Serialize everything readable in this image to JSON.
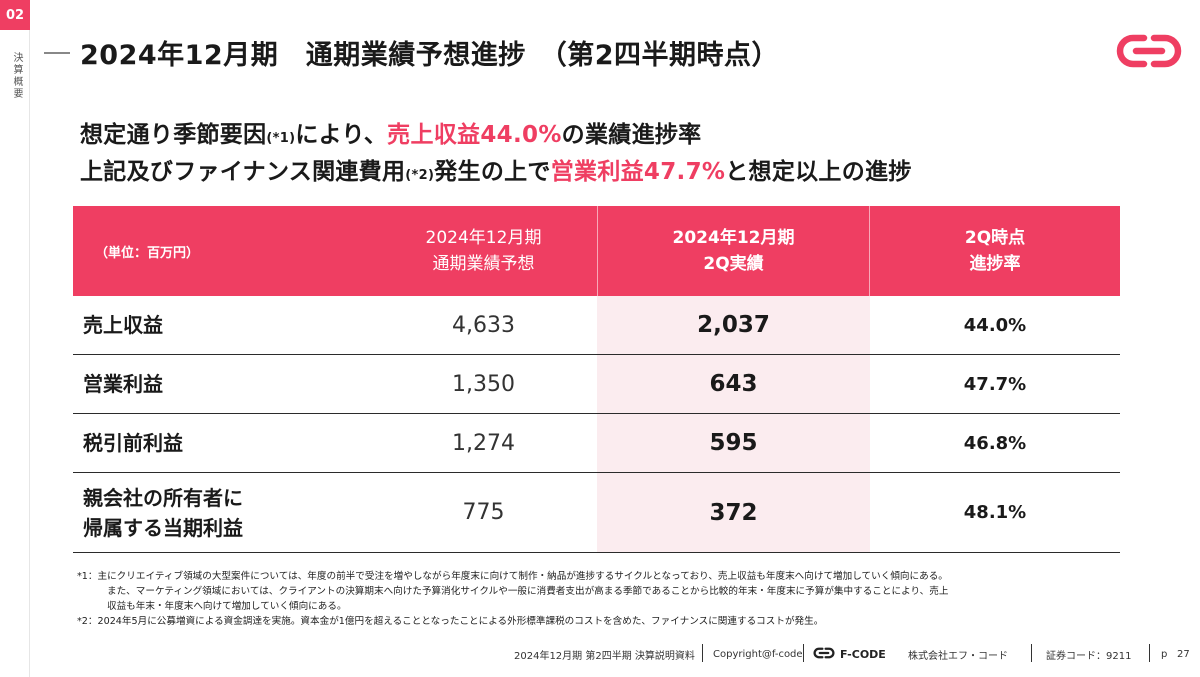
{
  "section": {
    "number": "02",
    "label": "決算概要"
  },
  "page_title": "2024年12月期　通期業績予想進捗　（第2四半期時点）",
  "brand_color": "#ef3e62",
  "headline": {
    "line1_a": "想定通り季節要因",
    "line1_ref": "(*1)",
    "line1_b": "により、",
    "line1_accent": "売上収益44.0%",
    "line1_c": "の業績進捗率",
    "line2_a": "上記及びファイナンス関連費用",
    "line2_ref": "(*2)",
    "line2_b": "発生の上で",
    "line2_accent": "営業利益47.7%",
    "line2_c": "と想定以上の進捗"
  },
  "table": {
    "unit_label": "（単位：百万円）",
    "col1": [
      "2024年12月期",
      "通期業績予想"
    ],
    "col2": [
      "2024年12月期",
      "2Q実績"
    ],
    "col3": [
      "2Q時点",
      "進捗率"
    ],
    "rows": [
      {
        "label": [
          "売上収益"
        ],
        "forecast": "4,633",
        "actual": "2,037",
        "progress": "44.0%"
      },
      {
        "label": [
          "営業利益"
        ],
        "forecast": "1,350",
        "actual": "643",
        "progress": "47.7%"
      },
      {
        "label": [
          "税引前利益"
        ],
        "forecast": "1,274",
        "actual": "595",
        "progress": "46.8%"
      },
      {
        "label": [
          "親会社の所有者に",
          "帰属する当期利益"
        ],
        "forecast": "775",
        "actual": "372",
        "progress": "48.1%"
      }
    ]
  },
  "notes": {
    "n1": "*1：主にクリエイティブ領域の大型案件については、年度の前半で受注を増やしながら年度末に向けて制作・納品が進捗するサイクルとなっており、売上収益も年度末へ向けて増加していく傾向にある。",
    "n1b": "また、マーケティング領域においては、クライアントの決算期末へ向けた予算消化サイクルや一般に消費者支出が高まる季節であることから比較的年末・年度末に予算が集中することにより、売上",
    "n1c": "収益も年末・年度末へ向けて増加していく傾向にある。",
    "n2": "*2：2024年5月に公募増資による資金調達を実施。資本金が1億円を超えることとなったことによる外形標準課税のコストを含めた、ファイナンスに関連するコストが発生。"
  },
  "footer": {
    "doc": "2024年12月期 第2四半期 決算説明資料",
    "copyright": "Copyright@f-code",
    "brand": "F-CODE",
    "company": "株式会社エフ・コード",
    "code": "証券コード：9211",
    "page_label": "p",
    "page_num": "27"
  }
}
